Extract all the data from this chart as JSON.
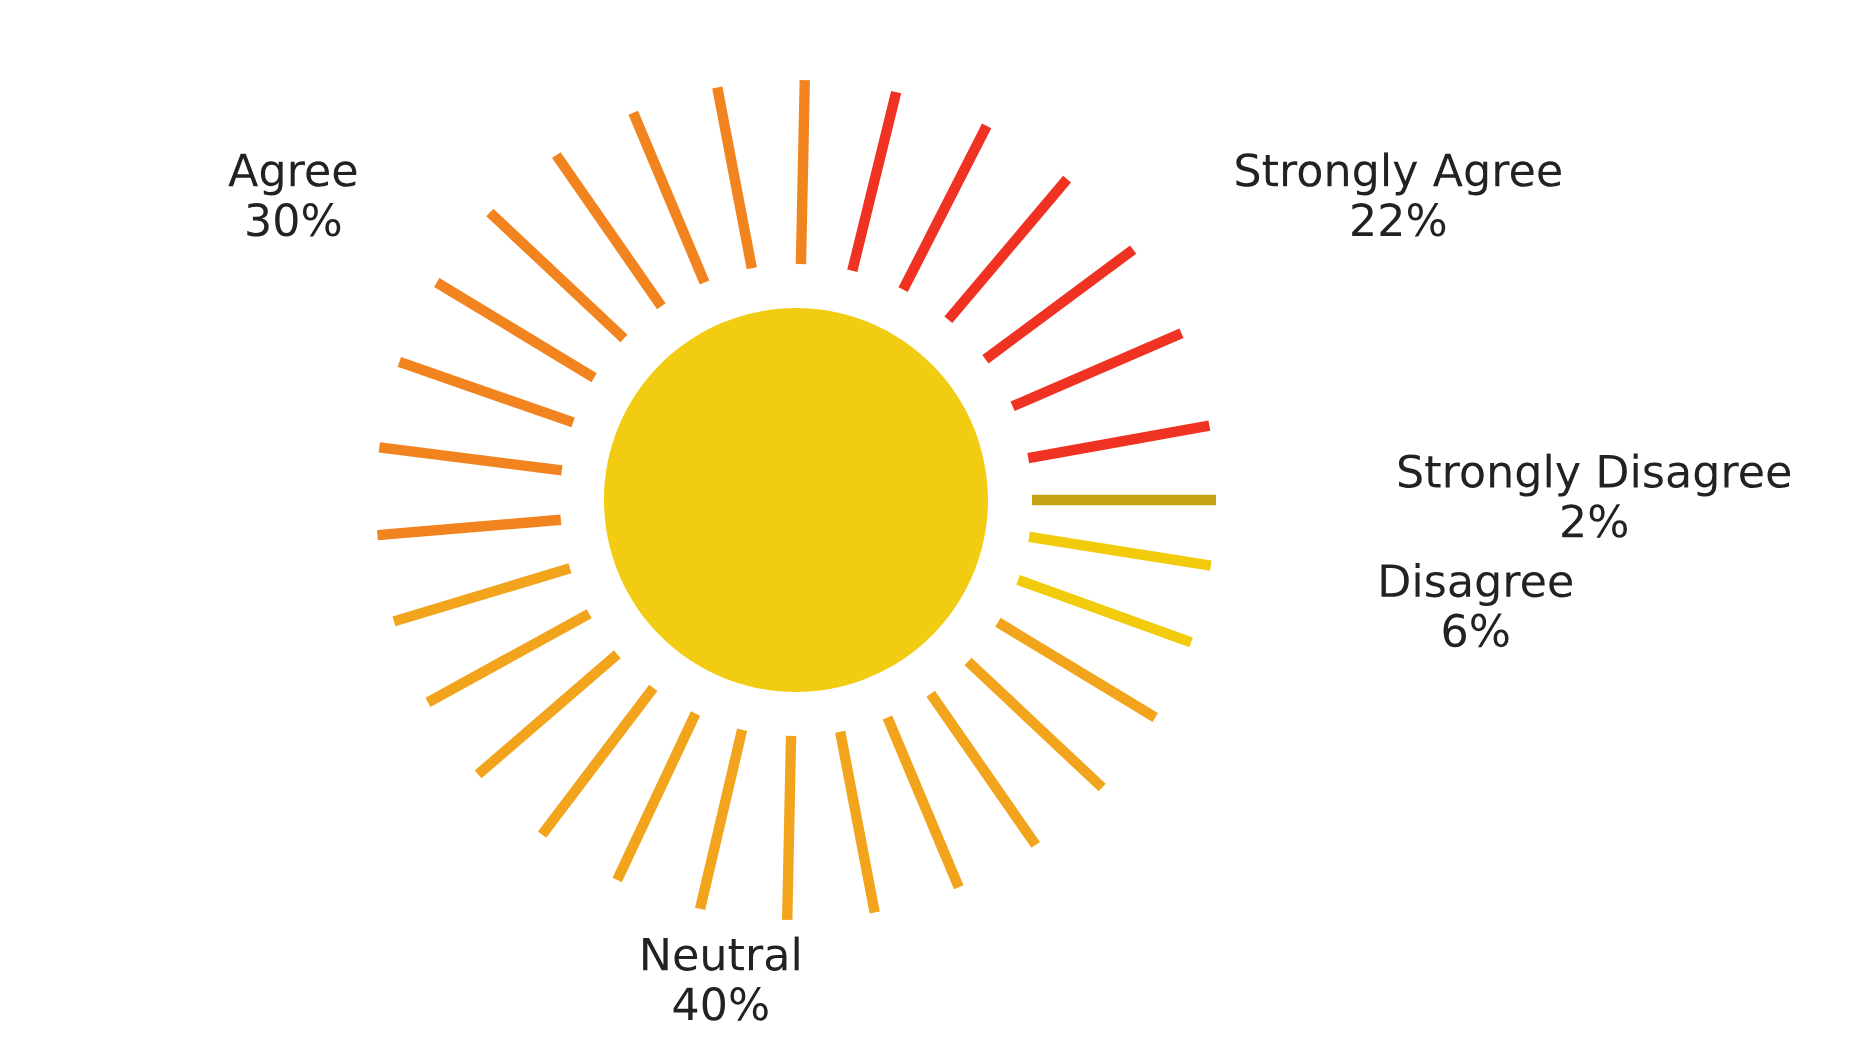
{
  "chart_data": {
    "type": "other",
    "categories": [
      "Strongly Disagree",
      "Disagree",
      "Neutral",
      "Agree",
      "Strongly Agree"
    ],
    "values": [
      2,
      6,
      40,
      30,
      22
    ],
    "value_labels": [
      "2%",
      "6%",
      "40%",
      "30%",
      "22%"
    ],
    "colors": [
      "#c4a416",
      "#f2cc0c",
      "#f2a51c",
      "#f28420",
      "#f03222"
    ],
    "legend": false
  }
}
